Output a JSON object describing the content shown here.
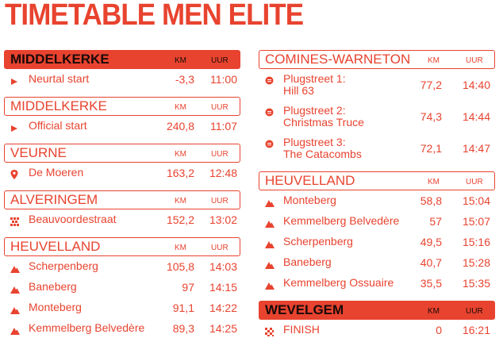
{
  "title": "TIMETABLE MEN ELITE",
  "accent": "#e8432f",
  "left_sections": [
    {
      "name": "MIDDELKERKE",
      "km_label": "KM",
      "uur_label": "UUR",
      "filled": true,
      "rows": [
        {
          "icon": "play-icon",
          "name": "Neurtal start",
          "km": "-3,3",
          "uur": "11:00"
        }
      ]
    },
    {
      "name": "MIDDELKERKE",
      "km_label": "KM",
      "uur_label": "UUR",
      "filled": false,
      "rows": [
        {
          "icon": "play-icon",
          "name": "Official start",
          "km": "240,8",
          "uur": "11:07"
        }
      ]
    },
    {
      "name": "VEURNE",
      "km_label": "KM",
      "uur_label": "UUR",
      "filled": false,
      "rows": [
        {
          "icon": "map-pin-icon",
          "name": "De Moeren",
          "km": "163,2",
          "uur": "12:48"
        }
      ]
    },
    {
      "name": "ALVERINGEM",
      "km_label": "KM",
      "uur_label": "UUR",
      "filled": false,
      "rows": [
        {
          "icon": "cobblestone-icon",
          "name": "Beauvoordestraat",
          "km": "152,2",
          "uur": "13:02"
        }
      ]
    },
    {
      "name": "HEUVELLAND",
      "km_label": "KM",
      "uur_label": "UUR",
      "filled": false,
      "rows": [
        {
          "icon": "climb-icon",
          "name": "Scherpenberg",
          "km": "105,8",
          "uur": "14:03"
        },
        {
          "icon": "climb-icon",
          "name": "Baneberg",
          "km": "97",
          "uur": "14:15"
        },
        {
          "icon": "climb-icon",
          "name": "Monteberg",
          "km": "91,1",
          "uur": "14:22"
        },
        {
          "icon": "climb-icon",
          "name": "Kemmelberg Belvedère",
          "km": "89,3",
          "uur": "14:25"
        }
      ]
    }
  ],
  "right_sections": [
    {
      "name": "COMINES-WARNETON",
      "km_label": "KM",
      "uur_label": "UUR",
      "filled": false,
      "rows": [
        {
          "icon": "plugstreet-icon",
          "name": "Plugstreet 1:",
          "name2": "Hill 63",
          "km": "77,2",
          "uur": "14:40"
        },
        {
          "icon": "plugstreet-icon",
          "name": "Plugstreet 2:",
          "name2": "Christmas Truce",
          "km": "74,3",
          "uur": "14:44"
        },
        {
          "icon": "plugstreet-icon",
          "name": "Plugstreet 3:",
          "name2": "The Catacombs",
          "km": "72,1",
          "uur": "14:47"
        }
      ]
    },
    {
      "name": "HEUVELLAND",
      "km_label": "KM",
      "uur_label": "UUR",
      "filled": false,
      "rows": [
        {
          "icon": "climb-icon",
          "name": "Monteberg",
          "km": "58,8",
          "uur": "15:04"
        },
        {
          "icon": "climb-icon",
          "name": "Kemmelberg Belvedère",
          "km": "57",
          "uur": "15:07"
        },
        {
          "icon": "climb-icon",
          "name": "Scherpenberg",
          "km": "49,5",
          "uur": "15:16"
        },
        {
          "icon": "climb-icon",
          "name": "Baneberg",
          "km": "40,7",
          "uur": "15:28"
        },
        {
          "icon": "climb-icon",
          "name": "Kemmelberg Ossuaire",
          "km": "35,5",
          "uur": "15:35"
        }
      ]
    },
    {
      "name": "WEVELGEM",
      "km_label": "KM",
      "uur_label": "UUR",
      "filled": true,
      "rows": [
        {
          "icon": "finish-flag-icon",
          "name": "FINISH",
          "km": "0",
          "uur": "16:21"
        }
      ]
    }
  ]
}
